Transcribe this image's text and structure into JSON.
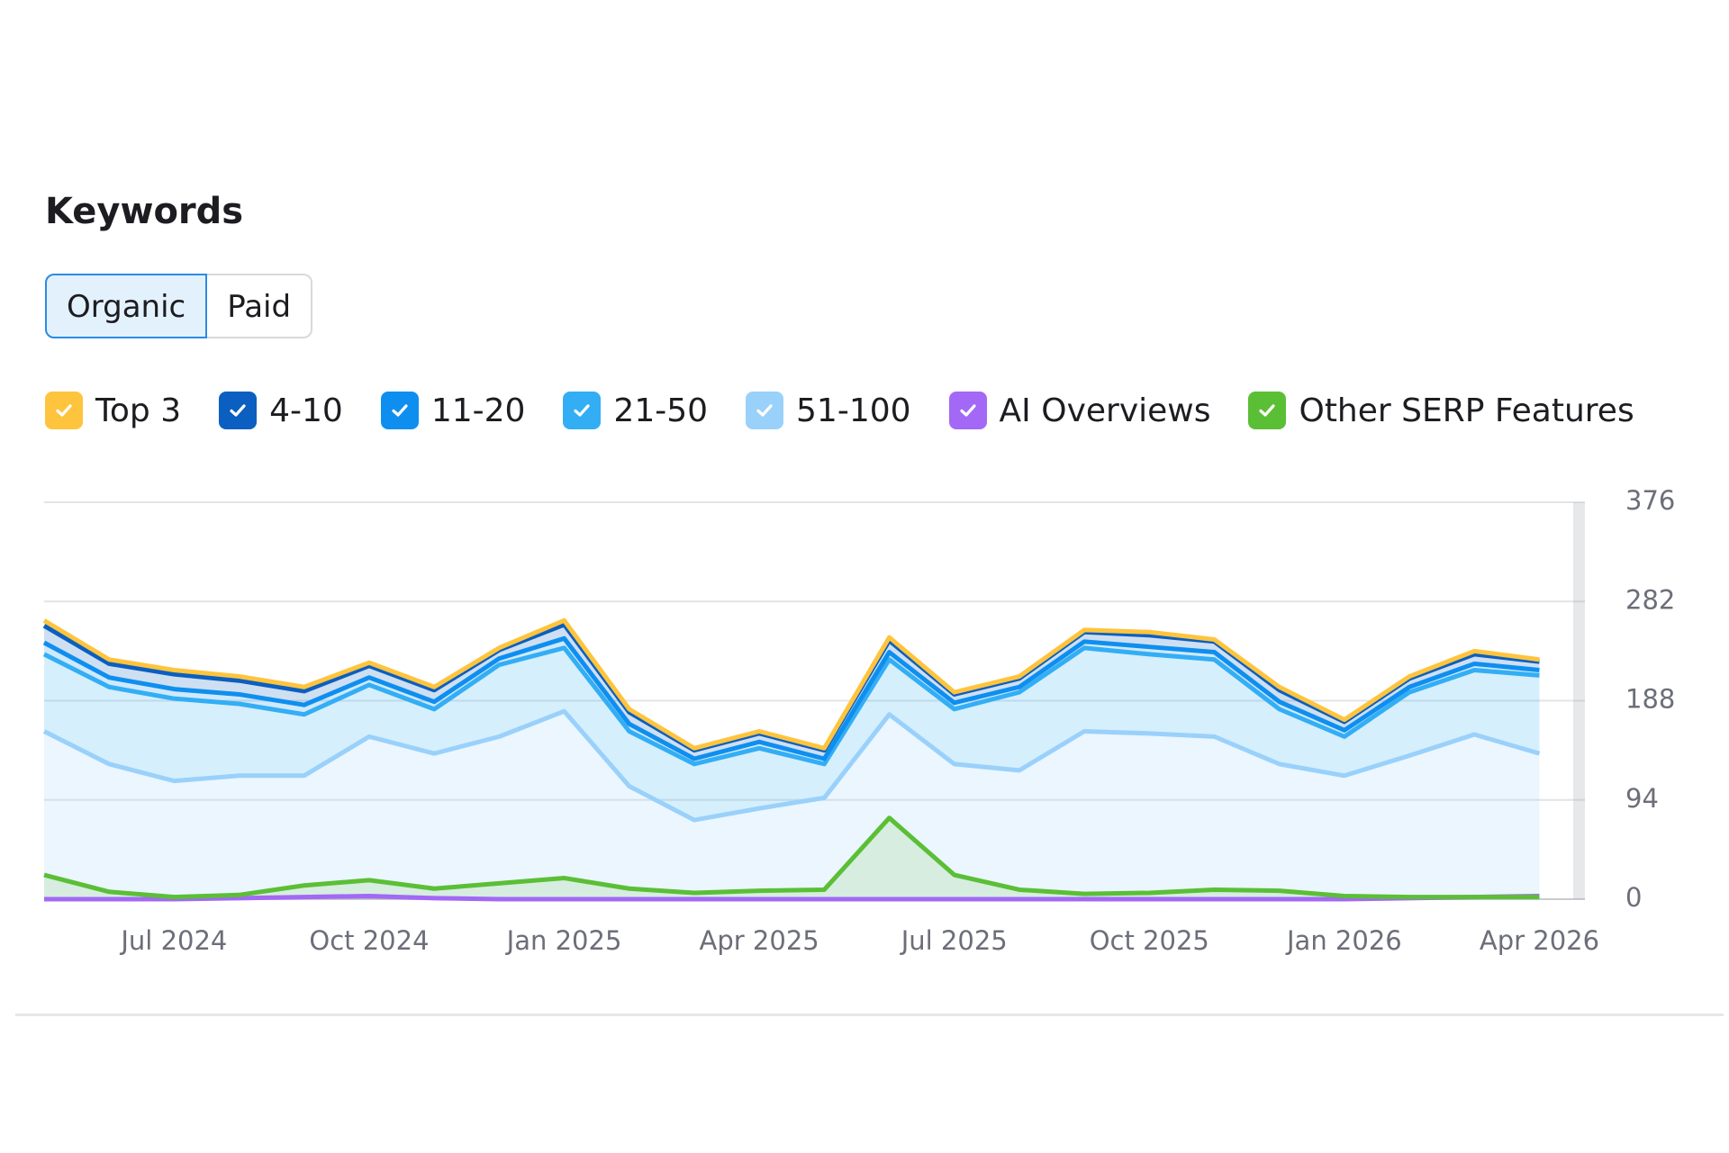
{
  "tabs": [
    "Organic",
    "Paid"
  ],
  "chart_data": {
    "type": "stacked-line",
    "title": "Keywords",
    "x": [
      "May 2024",
      "Jun 2024",
      "Jul 2024",
      "Aug 2024",
      "Sep 2024",
      "Oct 2024",
      "Nov 2024",
      "Dec 2024",
      "Jan 2025",
      "Feb 2025",
      "Mar 2025",
      "Apr 2025",
      "May 2025",
      "Jun 2025",
      "Jul 2025",
      "Aug 2025",
      "Sep 2025",
      "Oct 2025",
      "Nov 2025",
      "Dec 2025",
      "Jan 2026",
      "Feb 2026",
      "Mar 2026",
      "Apr 2026"
    ],
    "series": [
      {
        "name": "Top 3",
        "color": "#ffc43d",
        "stacked": true,
        "values": [
          5,
          4,
          4,
          4,
          4,
          3,
          3,
          2,
          4,
          3,
          2,
          2,
          2,
          3,
          2,
          2,
          2,
          3,
          2,
          3,
          2,
          2,
          3,
          2
        ]
      },
      {
        "name": "4-10",
        "color": "#0a5fc0",
        "stacked": true,
        "values": [
          16,
          13,
          14,
          13,
          13,
          11,
          11,
          8,
          13,
          11,
          8,
          8,
          8,
          11,
          8,
          8,
          9,
          11,
          10,
          11,
          8,
          8,
          9,
          8
        ]
      },
      {
        "name": "11-20",
        "color": "#0e8ff0",
        "stacked": true,
        "values": [
          11,
          9,
          9,
          9,
          9,
          7,
          7,
          6,
          9,
          7,
          5,
          6,
          5,
          7,
          6,
          5,
          6,
          7,
          7,
          7,
          6,
          5,
          6,
          5
        ]
      },
      {
        "name": "21-50",
        "color": "#33aef5",
        "stacked": true,
        "values": [
          73,
          73,
          78,
          68,
          58,
          49,
          42,
          68,
          60,
          52,
          53,
          57,
          32,
          52,
          52,
          74,
          79,
          75,
          73,
          52,
          37,
          60,
          61,
          74
        ]
      },
      {
        "name": "51-100",
        "color": "#99d1fb",
        "stacked": true,
        "values": [
          159,
          128,
          112,
          117,
          117,
          154,
          138,
          154,
          178,
          107,
          75,
          86,
          96,
          175,
          128,
          122,
          159,
          157,
          154,
          128,
          117,
          136,
          156,
          138
        ]
      },
      {
        "name": "AI Overviews",
        "color": "#a368f5",
        "stacked": false,
        "values": [
          0,
          0,
          0,
          1,
          2,
          3,
          1,
          0,
          0,
          0,
          0,
          0,
          0,
          0,
          0,
          0,
          0,
          0,
          0,
          0,
          0,
          1,
          2,
          3
        ]
      },
      {
        "name": "Other SERP Features",
        "color": "#5bbf36",
        "stacked": false,
        "values": [
          23,
          7,
          2,
          4,
          13,
          18,
          10,
          15,
          20,
          10,
          6,
          8,
          9,
          77,
          23,
          9,
          5,
          6,
          9,
          8,
          3,
          2,
          2,
          2
        ]
      }
    ],
    "ylim": [
      0,
      376
    ],
    "yticks": [
      0,
      94,
      188,
      282,
      376
    ],
    "grid": true,
    "y_axis_side": "right"
  }
}
